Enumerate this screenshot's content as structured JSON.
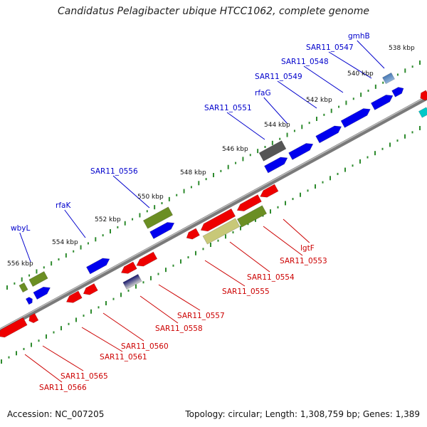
{
  "title": "Candidatus Pelagibacter ubique HTCC1062, complete genome",
  "footer": {
    "accession": "Accession: NC_007205",
    "stats": "Topology: circular; Length: 1,308,759 bp; Genes: 1,389"
  },
  "colors": {
    "forward_gene": "#0000ee",
    "reverse_gene": "#ee0000",
    "rna_gene": "#6b8e23",
    "pseudo_gene": "#c8c878",
    "other_gene": "#555555",
    "tick": "#2e8b2e",
    "backbone": "#8a8a8a"
  },
  "kbp_ticks": [
    "538 kbp",
    "540 kbp",
    "542 kbp",
    "544 kbp",
    "546 kbp",
    "548 kbp",
    "550 kbp",
    "552 kbp",
    "554 kbp",
    "556 kbp"
  ],
  "gene_labels_forward": [
    "gmhB",
    "SAR11_0547",
    "SAR11_0548",
    "SAR11_0549",
    "rfaG",
    "SAR11_0551",
    "SAR11_0556",
    "rfaK",
    "wbyL"
  ],
  "gene_labels_reverse": [
    "lgtF",
    "SAR11_0553",
    "SAR11_0554",
    "SAR11_0555",
    "SAR11_0557",
    "SAR11_0558",
    "SAR11_0560",
    "SAR11_0561",
    "SAR11_0565",
    "SAR11_0566"
  ]
}
